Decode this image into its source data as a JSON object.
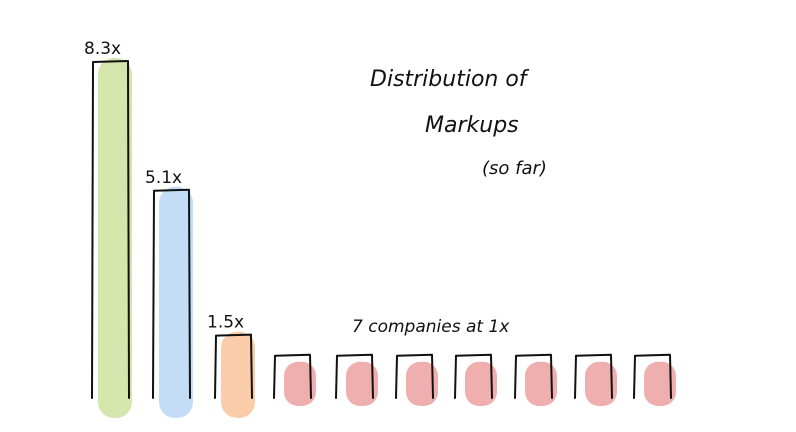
{
  "title": "Distribution of",
  "title_line2": "Markups",
  "subtitle": "(so far)",
  "annotation": "7 companies at 1x",
  "chart_data": {
    "type": "bar",
    "title": "Distribution of Markups",
    "subtitle": "(so far)",
    "categories": [
      "",
      "",
      "",
      "",
      "",
      "",
      "",
      "",
      "",
      ""
    ],
    "values": [
      8.3,
      5.1,
      1.5,
      1,
      1,
      1,
      1,
      1,
      1,
      1
    ],
    "value_labels": [
      "8.3x",
      "5.1x",
      "1.5x",
      "",
      "",
      "",
      "",
      "",
      "",
      ""
    ],
    "colors": [
      "#cfe3a3",
      "#bcd9f5",
      "#f9c6a0",
      "#eea6a6",
      "#eea6a6",
      "#eea6a6",
      "#eea6a6",
      "#eea6a6",
      "#eea6a6",
      "#eea6a6"
    ],
    "annotation": "7 companies at 1x",
    "ylim": [
      0,
      8.3
    ],
    "grid": false,
    "legend": "none",
    "axes": "none"
  }
}
